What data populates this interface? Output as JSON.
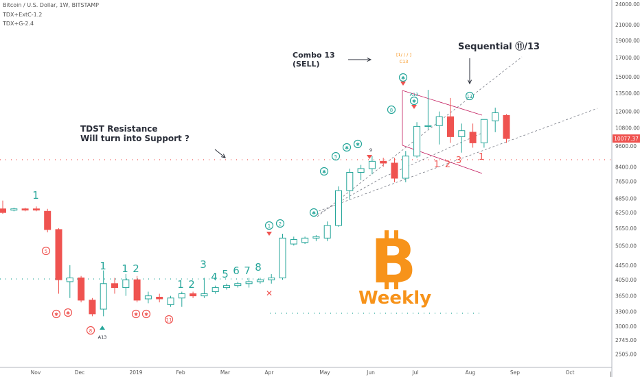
{
  "header": {
    "symbol": "Bitcoin / U.S. Dollar, 1W, BITSTAMP",
    "indicator1": "TDX+ExtC-1.2",
    "indicator2": "TDX+G-2.4"
  },
  "annotations": {
    "combo_line1": "Combo 13",
    "combo_line2": "(SELL)",
    "sequential": "Sequential ⑪/13",
    "tdst_line1": "TDST Resistance",
    "tdst_line2": "Will turn into Support ?",
    "weekly": "Weekly",
    "combo_marker": "[1/ / / ]",
    "c13_label": "C13",
    "a13_label": "A13",
    "a13_top_label": "A13",
    "nine_label": "9"
  },
  "colors": {
    "up": "#26a69a",
    "down": "#ef5350",
    "btc_orange": "#f7931a",
    "text_dark": "#2a2e39",
    "axis_text": "#555555",
    "price_badge": "#ef5350"
  },
  "icons": {
    "bitcoin": "bitcoin-logo-icon"
  },
  "chart_data": {
    "type": "candlestick",
    "title": "Bitcoin / U.S. Dollar, 1W, BITSTAMP",
    "log_scale": true,
    "ylim": [
      2300,
      24000
    ],
    "grid": false,
    "current_price": "10077.37",
    "y_ticks": [
      "24000.00",
      "21000.00",
      "19000.00",
      "17000.00",
      "15000.00",
      "13500.00",
      "12000.00",
      "10800.00",
      "9600.00",
      "8400.00",
      "7650.00",
      "6850.00",
      "6250.00",
      "5650.00",
      "5050.00",
      "4450.00",
      "4050.00",
      "3650.00",
      "3300.00",
      "3000.00",
      "2745.00",
      "2505.00"
    ],
    "x_ticks": [
      "Nov",
      "Dec",
      "2019",
      "Feb",
      "Mar",
      "Apr",
      "May",
      "Jun",
      "Jul",
      "Aug",
      "Sep",
      "Oct"
    ],
    "candles": [
      {
        "o": 6400,
        "h": 6750,
        "l": 6200,
        "c": 6250
      },
      {
        "o": 6350,
        "h": 6450,
        "l": 6300,
        "c": 6400
      },
      {
        "o": 6400,
        "h": 6450,
        "l": 6300,
        "c": 6350
      },
      {
        "o": 6400,
        "h": 6500,
        "l": 6300,
        "c": 6350
      },
      {
        "o": 6300,
        "h": 6400,
        "l": 5500,
        "c": 5600
      },
      {
        "o": 5600,
        "h": 5650,
        "l": 3700,
        "c": 4050
      },
      {
        "o": 4000,
        "h": 4450,
        "l": 3600,
        "c": 4100
      },
      {
        "o": 4100,
        "h": 4150,
        "l": 3500,
        "c": 3550
      },
      {
        "o": 3550,
        "h": 3600,
        "l": 3200,
        "c": 3250
      },
      {
        "o": 3350,
        "h": 4300,
        "l": 3200,
        "c": 3950
      },
      {
        "o": 3950,
        "h": 4100,
        "l": 3700,
        "c": 3850
      },
      {
        "o": 3850,
        "h": 4200,
        "l": 3650,
        "c": 4050
      },
      {
        "o": 4050,
        "h": 4150,
        "l": 3500,
        "c": 3550
      },
      {
        "o": 3580,
        "h": 3750,
        "l": 3480,
        "c": 3650
      },
      {
        "o": 3620,
        "h": 3700,
        "l": 3500,
        "c": 3580
      },
      {
        "o": 3450,
        "h": 3650,
        "l": 3400,
        "c": 3600
      },
      {
        "o": 3600,
        "h": 3750,
        "l": 3400,
        "c": 3700
      },
      {
        "o": 3700,
        "h": 3750,
        "l": 3600,
        "c": 3650
      },
      {
        "o": 3650,
        "h": 4100,
        "l": 3600,
        "c": 3700
      },
      {
        "o": 3750,
        "h": 3900,
        "l": 3700,
        "c": 3850
      },
      {
        "o": 3850,
        "h": 3950,
        "l": 3800,
        "c": 3900
      },
      {
        "o": 3900,
        "h": 4000,
        "l": 3850,
        "c": 3950
      },
      {
        "o": 3950,
        "h": 4100,
        "l": 3850,
        "c": 4000
      },
      {
        "o": 4000,
        "h": 4100,
        "l": 3950,
        "c": 4050
      },
      {
        "o": 4050,
        "h": 4200,
        "l": 3950,
        "c": 4100
      },
      {
        "o": 4100,
        "h": 5450,
        "l": 4050,
        "c": 5300
      },
      {
        "o": 5100,
        "h": 5350,
        "l": 5050,
        "c": 5250
      },
      {
        "o": 5150,
        "h": 5350,
        "l": 5100,
        "c": 5300
      },
      {
        "o": 5300,
        "h": 5400,
        "l": 5200,
        "c": 5350
      },
      {
        "o": 5300,
        "h": 5900,
        "l": 5200,
        "c": 5750
      },
      {
        "o": 5750,
        "h": 7400,
        "l": 5700,
        "c": 7200
      },
      {
        "o": 7200,
        "h": 8300,
        "l": 6800,
        "c": 8100
      },
      {
        "o": 8100,
        "h": 8500,
        "l": 7700,
        "c": 8300
      },
      {
        "o": 8300,
        "h": 9000,
        "l": 8000,
        "c": 8700
      },
      {
        "o": 8700,
        "h": 8900,
        "l": 8400,
        "c": 8600
      },
      {
        "o": 8600,
        "h": 8900,
        "l": 7600,
        "c": 7800
      },
      {
        "o": 7800,
        "h": 9300,
        "l": 7600,
        "c": 9000
      },
      {
        "o": 9000,
        "h": 11200,
        "l": 8900,
        "c": 10900
      },
      {
        "o": 10900,
        "h": 13800,
        "l": 10700,
        "c": 10950
      },
      {
        "o": 10950,
        "h": 12000,
        "l": 9700,
        "c": 11600
      },
      {
        "o": 11600,
        "h": 13100,
        "l": 9800,
        "c": 10200
      },
      {
        "o": 10200,
        "h": 11100,
        "l": 9200,
        "c": 10600
      },
      {
        "o": 10500,
        "h": 11100,
        "l": 9500,
        "c": 9800
      },
      {
        "o": 9800,
        "h": 11300,
        "l": 9500,
        "c": 11400
      },
      {
        "o": 11300,
        "h": 12300,
        "l": 10500,
        "c": 11900
      },
      {
        "o": 11700,
        "h": 11800,
        "l": 9800,
        "c": 10077.37
      }
    ]
  }
}
